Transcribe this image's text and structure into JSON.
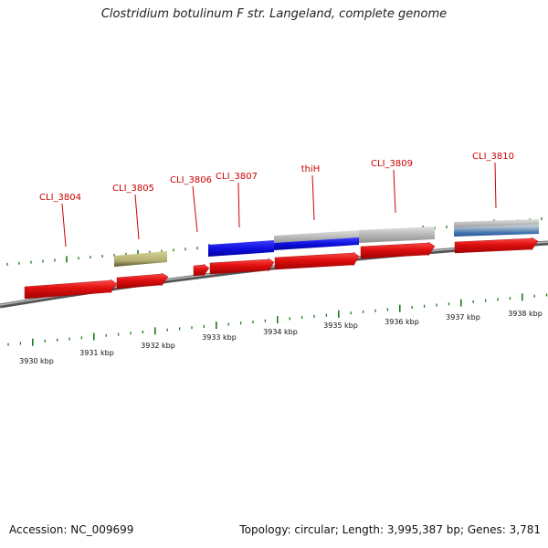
{
  "title": "Clostridium botulinum F str. Langeland, complete genome",
  "footer": {
    "accession": "Accession: NC_009699",
    "topology": "Topology: circular; Length: 3,995,387 bp; Genes: 3,781"
  },
  "ruler": {
    "unit": "kbp",
    "labels": [
      "3930 kbp",
      "3931 kbp",
      "3932 kbp",
      "3933 kbp",
      "3934 kbp",
      "3935 kbp",
      "3936 kbp",
      "3937 kbp",
      "3938 kbp"
    ]
  },
  "genes": [
    {
      "name": "CLI_3804",
      "color": "#e01010"
    },
    {
      "name": "CLI_3805",
      "color": "#e01010"
    },
    {
      "name": "CLI_3806",
      "color": "#e01010"
    },
    {
      "name": "CLI_3807",
      "color": "#e01010"
    },
    {
      "name": "thiH",
      "color": "#e01010"
    },
    {
      "name": "CLI_3809",
      "color": "#e01010"
    },
    {
      "name": "CLI_3810",
      "color": "#e01010"
    }
  ],
  "colors": {
    "gene": "#e01010",
    "protein_blue": "#1010e0",
    "protein_gray": "#b8b8b8",
    "protein_olive": "#b5b070",
    "protein_steel": "#4a7ab5",
    "backbone": "#777777",
    "tick": "#1a7a1a",
    "label": "#cc0000"
  }
}
